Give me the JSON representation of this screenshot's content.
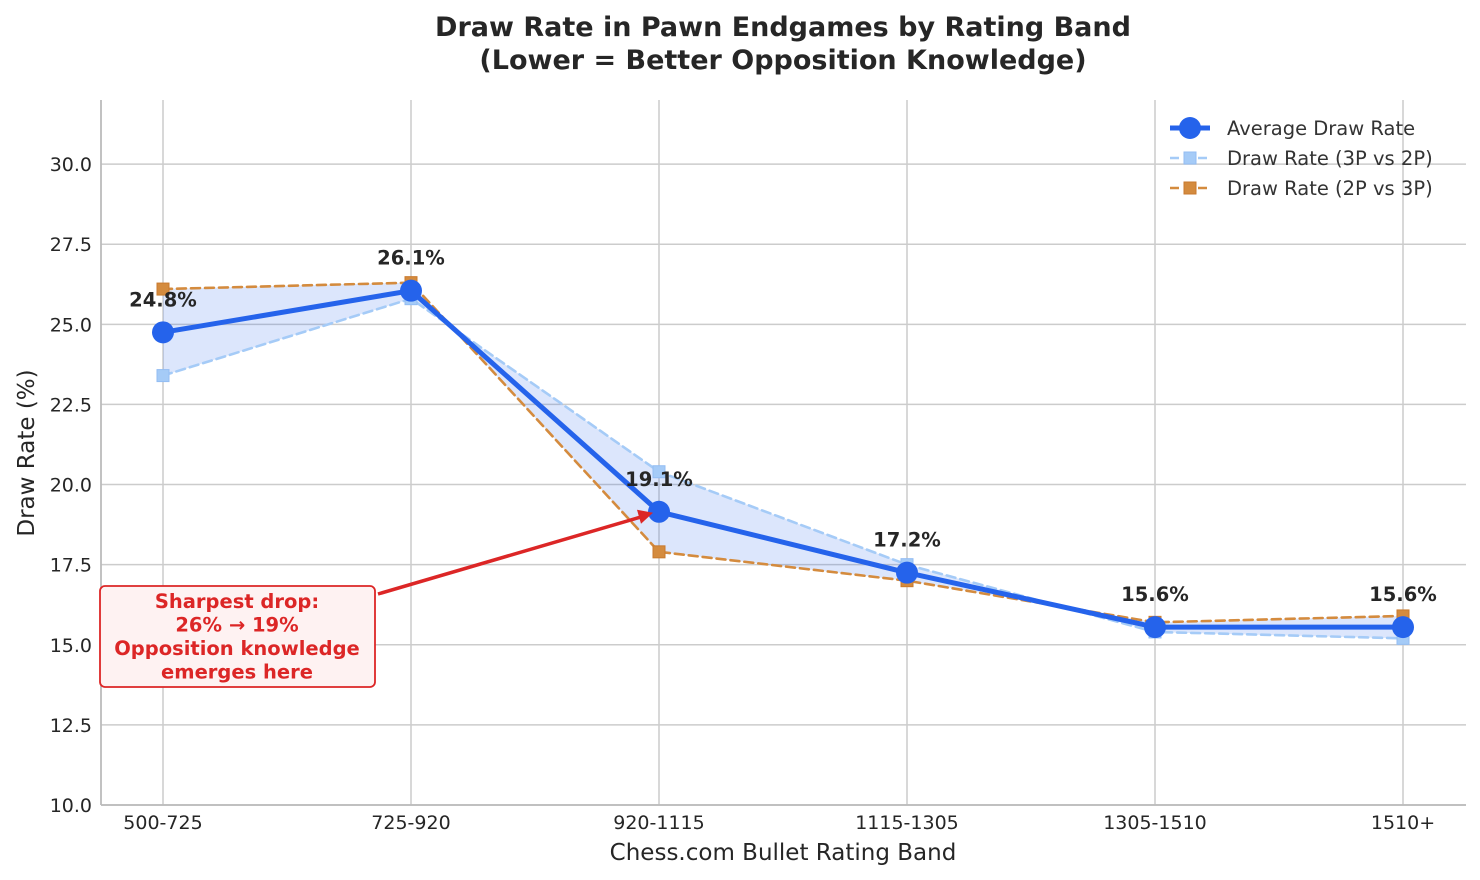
{
  "chart_data": {
    "type": "line",
    "title_lines": [
      "Draw Rate in Pawn Endgames by Rating Band",
      "(Lower = Better Opposition Knowledge)"
    ],
    "xlabel": "Chess.com Bullet Rating Band",
    "ylabel": "Draw Rate (%)",
    "categories": [
      "500-725",
      "725-920",
      "920-1115",
      "1115-1305",
      "1305-1510",
      "1510+"
    ],
    "ylim": [
      10,
      32
    ],
    "yticks": [
      "10.0",
      "12.5",
      "15.0",
      "17.5",
      "20.0",
      "22.5",
      "25.0",
      "27.5",
      "30.0"
    ],
    "grid": true,
    "legend_position": "top-right",
    "series": [
      {
        "name": "Average Draw Rate",
        "values": [
          24.75,
          26.05,
          19.15,
          17.25,
          15.55,
          15.55
        ],
        "color": "#2563eb",
        "style": "solid",
        "marker": "circle"
      },
      {
        "name": "Draw Rate (3P vs 2P)",
        "values": [
          23.4,
          25.8,
          20.4,
          17.5,
          15.4,
          15.2
        ],
        "color": "#a5cbf7",
        "style": "dashed",
        "marker": "square"
      },
      {
        "name": "Draw Rate (2P vs 3P)",
        "values": [
          26.1,
          26.3,
          17.9,
          17.0,
          15.7,
          15.9
        ],
        "color": "#d48b3e",
        "style": "dashed",
        "marker": "square"
      }
    ],
    "data_labels": [
      "24.8%",
      "26.1%",
      "19.1%",
      "17.2%",
      "15.6%",
      "15.6%"
    ],
    "shaded_band": {
      "between": [
        "Draw Rate (3P vs 2P)",
        "Draw Rate (2P vs 3P)"
      ],
      "color": "#2563eb"
    },
    "annotation": {
      "lines": [
        "Sharpest drop:",
        "26% → 19%",
        "Opposition knowledge",
        "emerges here"
      ],
      "target_category": "920-1115",
      "target_value": 19.15,
      "color": "#dc2626"
    }
  }
}
